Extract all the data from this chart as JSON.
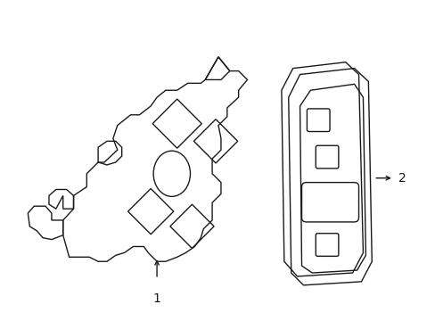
{
  "background_color": "#ffffff",
  "line_color": "#1a1a1a",
  "line_width": 1.0,
  "label1_text": "1",
  "label2_text": "2",
  "fig_width": 4.89,
  "fig_height": 3.6,
  "dpi": 100
}
